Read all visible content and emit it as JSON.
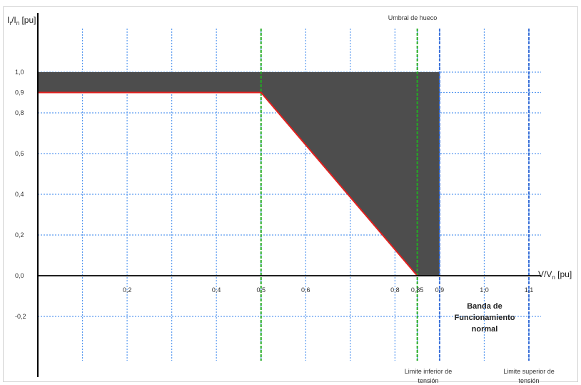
{
  "chart_data": {
    "type": "area",
    "ylabel_main": "I",
    "ylabel_sub1": "r",
    "ylabel_mid": "/I",
    "ylabel_sub2": "n",
    "ylabel_unit": " [pu]",
    "xlabel_main": "V/V",
    "xlabel_sub": "n",
    "xlabel_unit": " [pu]",
    "x_ticks": [
      {
        "value": 0.2,
        "label": "0,2"
      },
      {
        "value": 0.4,
        "label": "0,4"
      },
      {
        "value": 0.5,
        "label": "0,5"
      },
      {
        "value": 0.6,
        "label": "0,6"
      },
      {
        "value": 0.8,
        "label": "0,8"
      },
      {
        "value": 0.85,
        "label": "0,85"
      },
      {
        "value": 0.9,
        "label": "0,9"
      },
      {
        "value": 1.0,
        "label": "1,0"
      },
      {
        "value": 1.1,
        "label": "1,1"
      }
    ],
    "y_ticks": [
      {
        "value": 1.0,
        "label": "1,0"
      },
      {
        "value": 0.9,
        "label": "0,9"
      },
      {
        "value": 0.8,
        "label": "0,8"
      },
      {
        "value": 0.6,
        "label": "0,6"
      },
      {
        "value": 0.4,
        "label": "0,4"
      },
      {
        "value": 0.2,
        "label": "0,2"
      },
      {
        "value": 0.0,
        "label": "0,0"
      },
      {
        "value": -0.2,
        "label": "-0,2"
      }
    ],
    "grid_x": [
      0.1,
      0.2,
      0.3,
      0.4,
      0.5,
      0.6,
      0.7,
      0.8,
      0.85,
      0.9,
      1.0,
      1.1
    ],
    "grid_y": [
      1.0,
      0.9,
      0.8,
      0.6,
      0.4,
      0.2,
      -0.2
    ],
    "shaded_region": [
      {
        "x": 0.0,
        "y": 1.0
      },
      {
        "x": 0.9,
        "y": 1.0
      },
      {
        "x": 0.9,
        "y": 0.0
      },
      {
        "x": 0.85,
        "y": 0.0
      },
      {
        "x": 0.5,
        "y": 0.9
      },
      {
        "x": 0.0,
        "y": 0.9
      }
    ],
    "series": [
      {
        "x": [
          0.0,
          0.5,
          0.85
        ],
        "y": [
          0.9,
          0.9,
          0.0
        ]
      }
    ],
    "vlines": [
      {
        "x": 0.5,
        "color": "#22aa22"
      },
      {
        "x": 0.85,
        "color": "#22aa22"
      },
      {
        "x": 0.9,
        "color": "#3a6fd8"
      },
      {
        "x": 1.1,
        "color": "#3a6fd8"
      }
    ],
    "annotations": {
      "umbral": "Umbral de hueco",
      "band_line1": "Banda de",
      "band_line2": "Funcionamiento",
      "band_line3": "normal",
      "lim_inf_line1": "Limite inferior de",
      "lim_inf_line2": "tensión",
      "lim_sup_line1": "Limite superior de",
      "lim_sup_line2": "tensión"
    },
    "xlim": [
      0.0,
      1.1
    ],
    "ylim": [
      -0.4,
      1.2
    ],
    "grid": true,
    "colors": {
      "fill": "#4d4d4d",
      "curve": "#e0201f",
      "grid": "#5b9bf0",
      "axis": "#000000"
    }
  }
}
